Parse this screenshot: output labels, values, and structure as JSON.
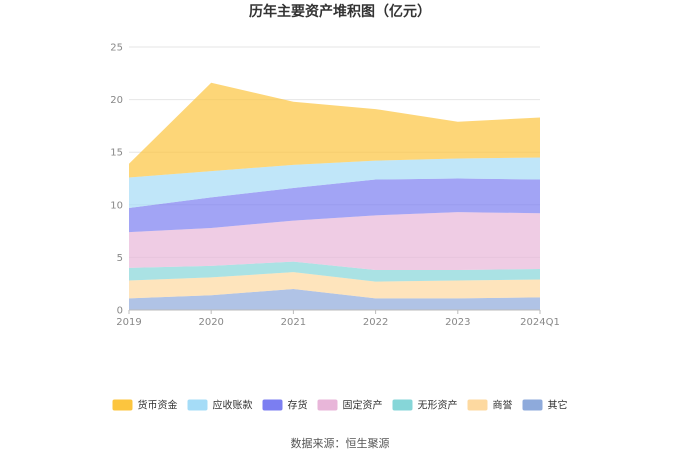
{
  "chart_data": {
    "type": "area",
    "stacked": true,
    "title": "历年主要资产堆积图（亿元）",
    "categories": [
      "2019",
      "2020",
      "2021",
      "2022",
      "2023",
      "2024Q1"
    ],
    "ylim": [
      0,
      25
    ],
    "yticks": [
      "0",
      "5",
      "10",
      "15",
      "20",
      "25"
    ],
    "grid": true,
    "legend_position": "bottom",
    "series": [
      {
        "name": "其它",
        "color": "#8eaadb",
        "values": [
          1.1,
          1.4,
          2.0,
          1.1,
          1.1,
          1.2
        ]
      },
      {
        "name": "商誉",
        "color": "#fdd9a0",
        "values": [
          1.7,
          1.7,
          1.6,
          1.6,
          1.7,
          1.7
        ]
      },
      {
        "name": "无形资产",
        "color": "#86d6d8",
        "values": [
          1.2,
          1.1,
          1.0,
          1.1,
          1.0,
          1.0
        ]
      },
      {
        "name": "固定资产",
        "color": "#e8b6d9",
        "values": [
          3.4,
          3.6,
          3.9,
          5.2,
          5.5,
          5.3
        ]
      },
      {
        "name": "存货",
        "color": "#7b7ef1",
        "values": [
          2.3,
          2.9,
          3.1,
          3.4,
          3.2,
          3.2
        ]
      },
      {
        "name": "应收账款",
        "color": "#a5dcf7",
        "values": [
          2.9,
          2.5,
          2.2,
          1.8,
          1.9,
          2.1
        ]
      },
      {
        "name": "货币资金",
        "color": "#fcc53e",
        "values": [
          1.3,
          8.4,
          6.0,
          4.9,
          3.5,
          3.8
        ]
      }
    ]
  },
  "legend_order": [
    "货币资金",
    "应收账款",
    "存货",
    "固定资产",
    "无形资产",
    "商誉",
    "其它"
  ],
  "source": "数据来源：恒生聚源"
}
